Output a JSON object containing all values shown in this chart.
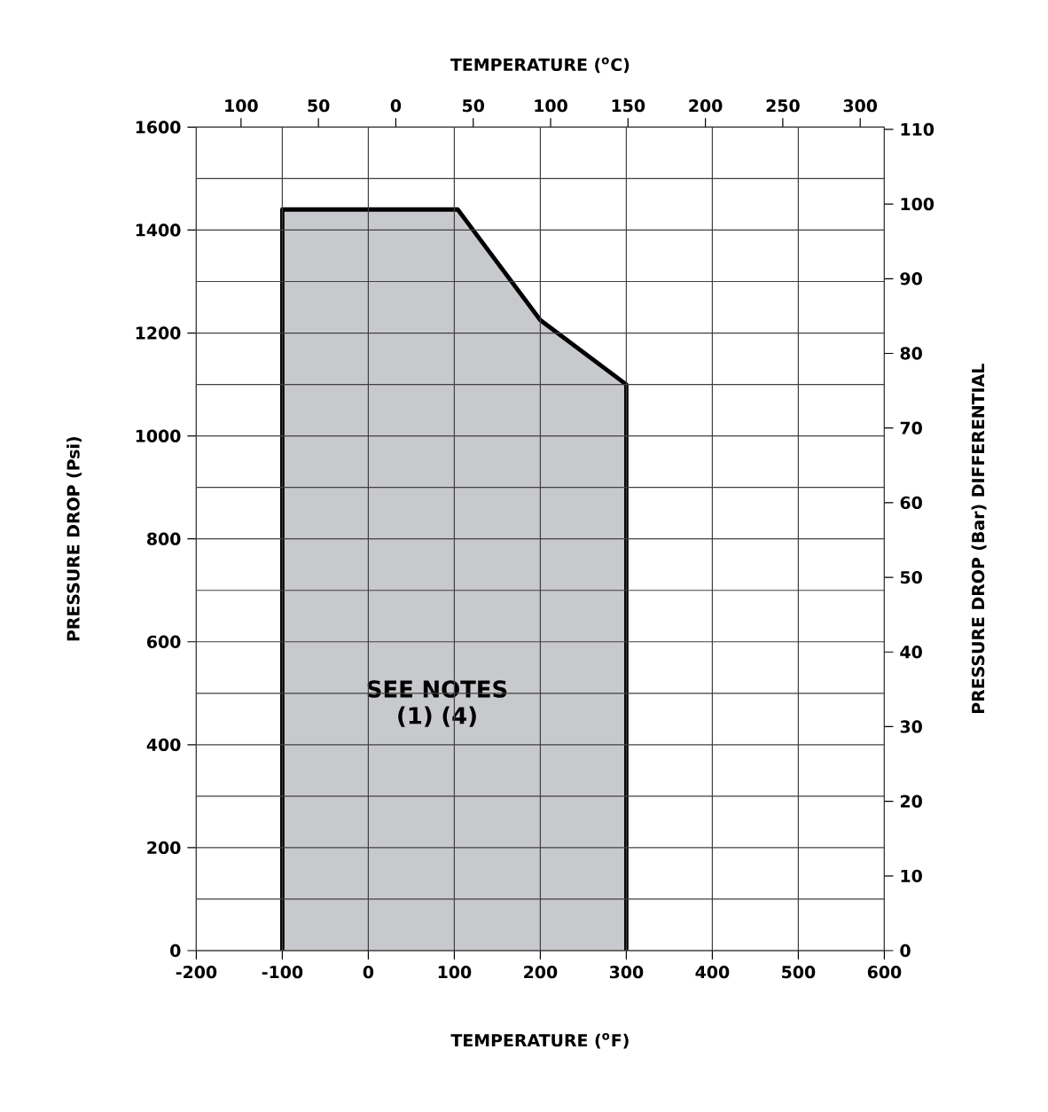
{
  "chart_data": {
    "type": "area",
    "xlabel": "TEMPERATURE ($^{o}$F)",
    "x2label": "TEMPERATURE ($^{o}$C)",
    "ylabel": "PRESSURE DROP (Psi)",
    "y2label": "PRESSURE DROP (Bar) DIFFERENTIAL",
    "annotations": [
      "SEE NOTES (1) (4)"
    ],
    "series": [
      {
        "x": [
          -100,
          -100,
          104,
          200,
          300,
          300
        ],
        "values": [
          0,
          1440,
          1440,
          1225,
          1100,
          0
        ],
        "color": "#c8c9cc"
      }
    ],
    "xlim": [
      -200,
      600
    ],
    "xticks": [
      -200,
      -100,
      0,
      100,
      200,
      300,
      400,
      500,
      600
    ],
    "ylim": [
      0,
      1600
    ],
    "yticks": [
      0,
      {
        "value": 100,
        "label": null
      },
      200,
      {
        "value": 300,
        "label": null
      },
      400,
      {
        "value": 500,
        "label": null
      },
      600,
      {
        "value": 700,
        "label": null
      },
      800,
      {
        "value": 900,
        "label": null
      },
      1000,
      {
        "value": 1100,
        "label": null
      },
      1200,
      {
        "value": 1300,
        "label": null
      },
      1400,
      {
        "value": 1500,
        "label": null
      },
      1600
    ],
    "x2lim": [
      -128.9,
      315.6
    ],
    "x2ticks": [
      {
        "value": -100,
        "label": "100"
      },
      {
        "value": -50,
        "label": "50"
      },
      0,
      50,
      100,
      150,
      200,
      250,
      300
    ],
    "y2lim": [
      0,
      110.3
    ],
    "y2ticks": [
      0,
      10,
      20,
      30,
      40,
      50,
      60,
      70,
      80,
      90,
      100,
      110
    ],
    "grid": true
  }
}
